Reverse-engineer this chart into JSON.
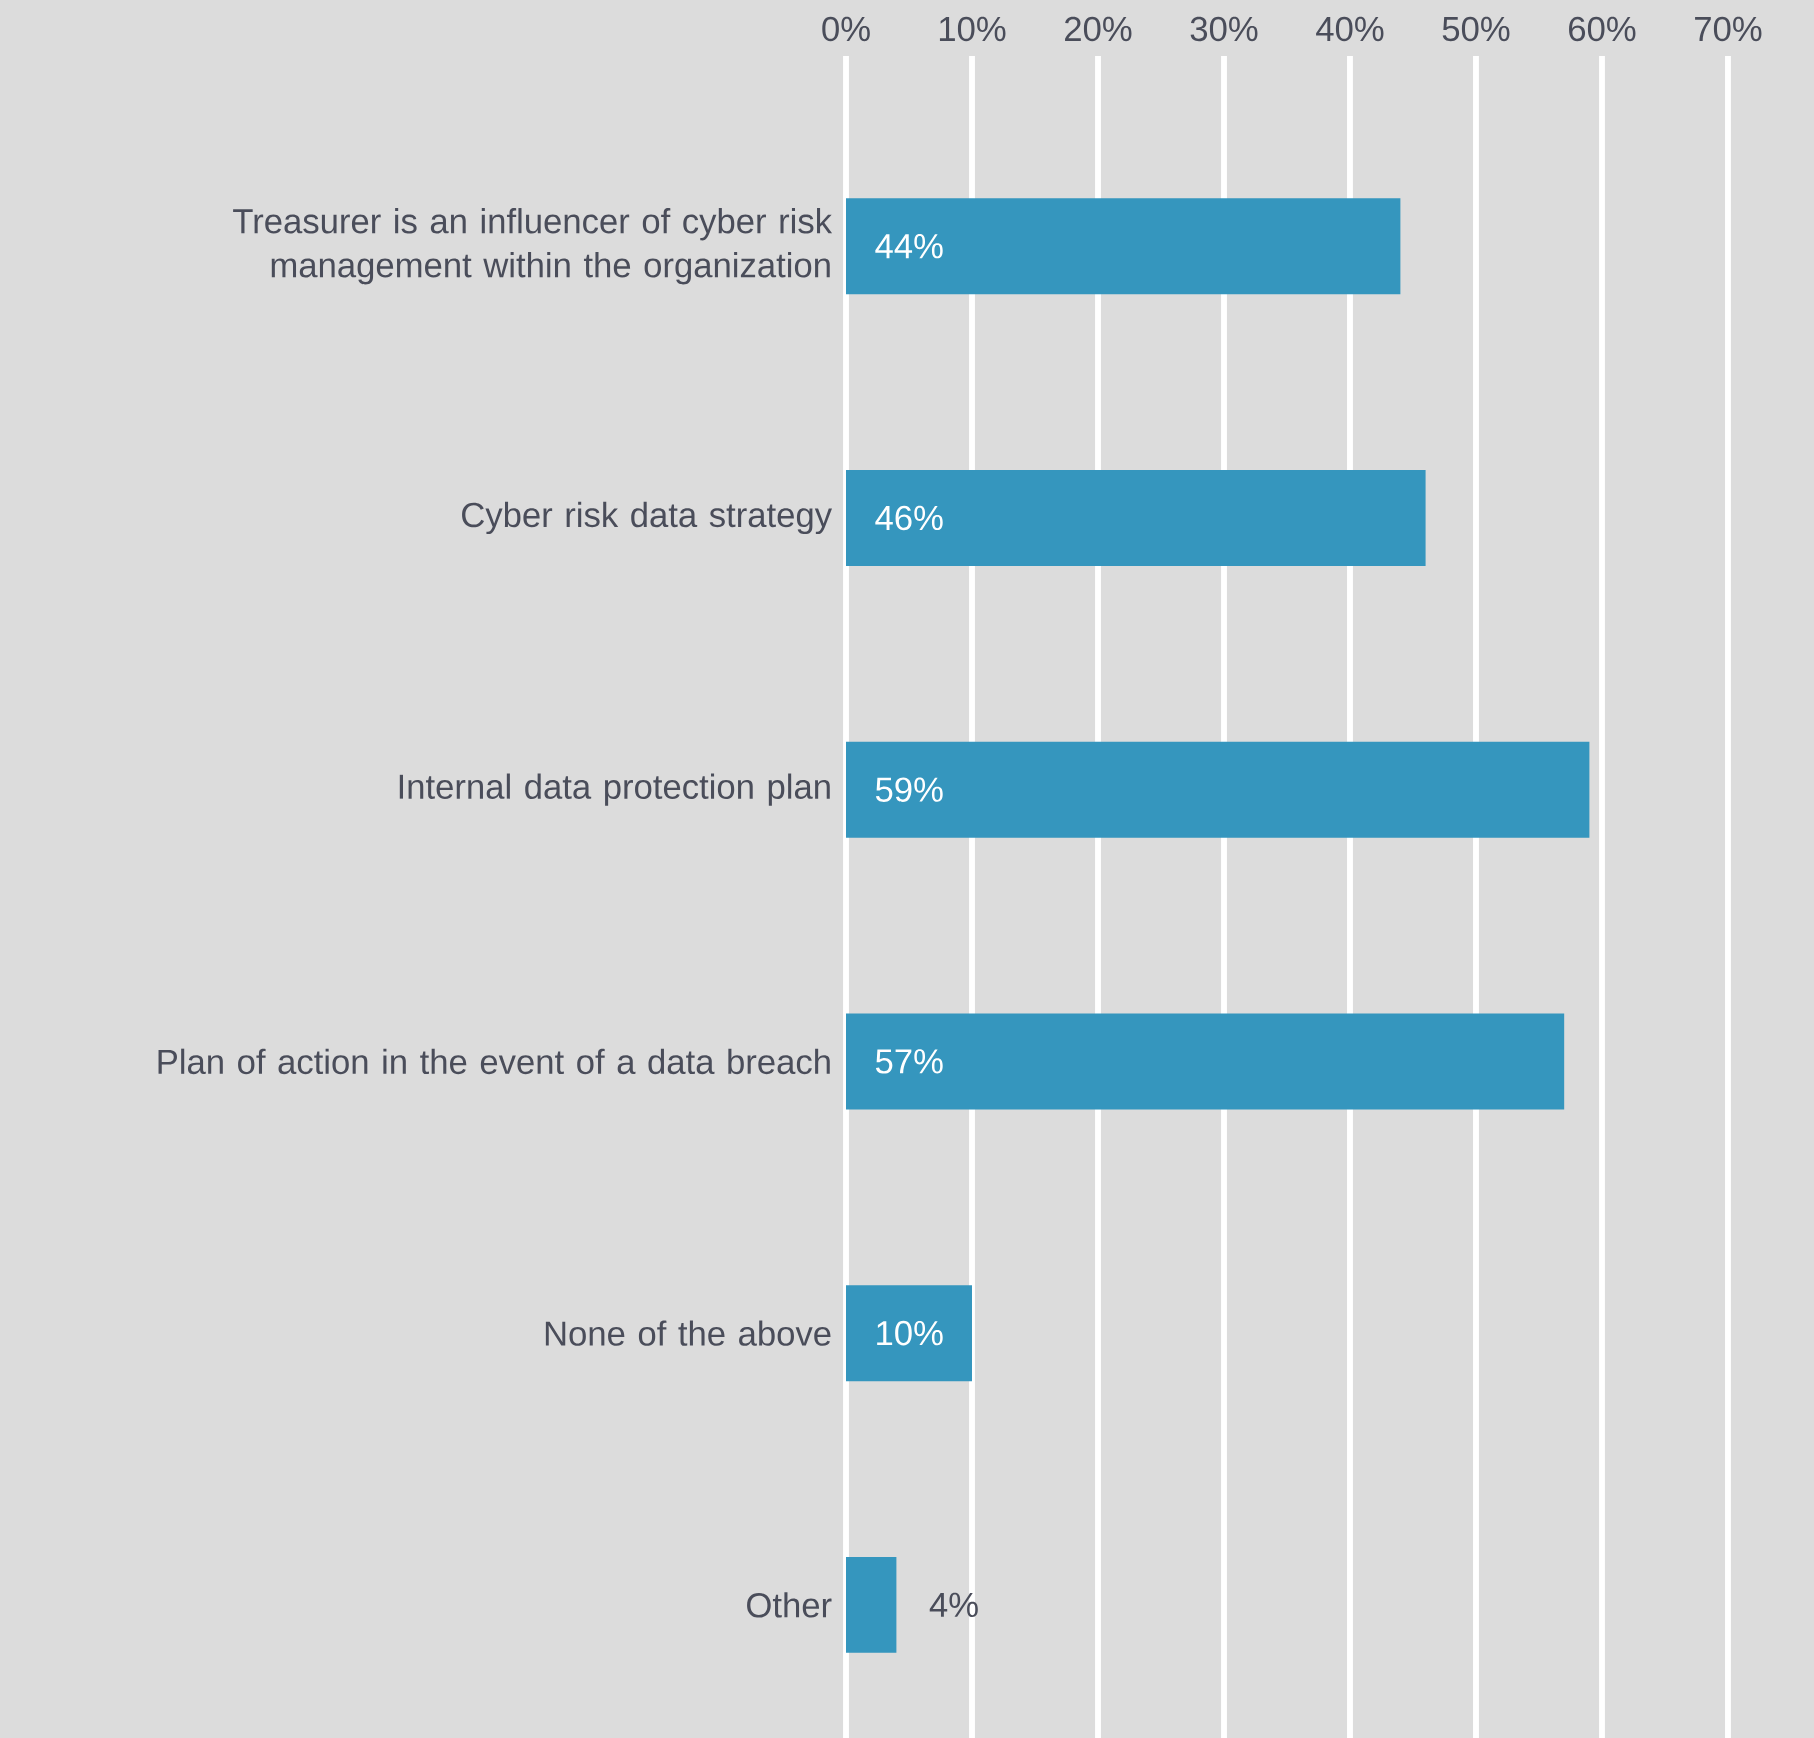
{
  "chart_data": {
    "type": "bar",
    "orientation": "horizontal",
    "categories": [
      "Treasurer is an influencer of cyber risk management within the organization",
      "Cyber risk data strategy",
      "Internal data protection plan",
      "Plan of action in the event of a data breach",
      "None of the above",
      "Other"
    ],
    "values": [
      44,
      46,
      59,
      57,
      10,
      4
    ],
    "value_labels": [
      "44%",
      "46%",
      "59%",
      "57%",
      "10%",
      "4%"
    ],
    "color": "#3596be",
    "xlim": [
      0,
      70
    ],
    "xticks": [
      {
        "value": 0,
        "label": "0%"
      },
      {
        "value": 10,
        "label": "10%"
      },
      {
        "value": 20,
        "label": "20%"
      },
      {
        "value": 30,
        "label": "30%"
      },
      {
        "value": 40,
        "label": "40%"
      },
      {
        "value": 50,
        "label": "50%"
      },
      {
        "value": 60,
        "label": "60%"
      },
      {
        "value": 70,
        "label": "70%"
      }
    ],
    "grid": "x"
  }
}
